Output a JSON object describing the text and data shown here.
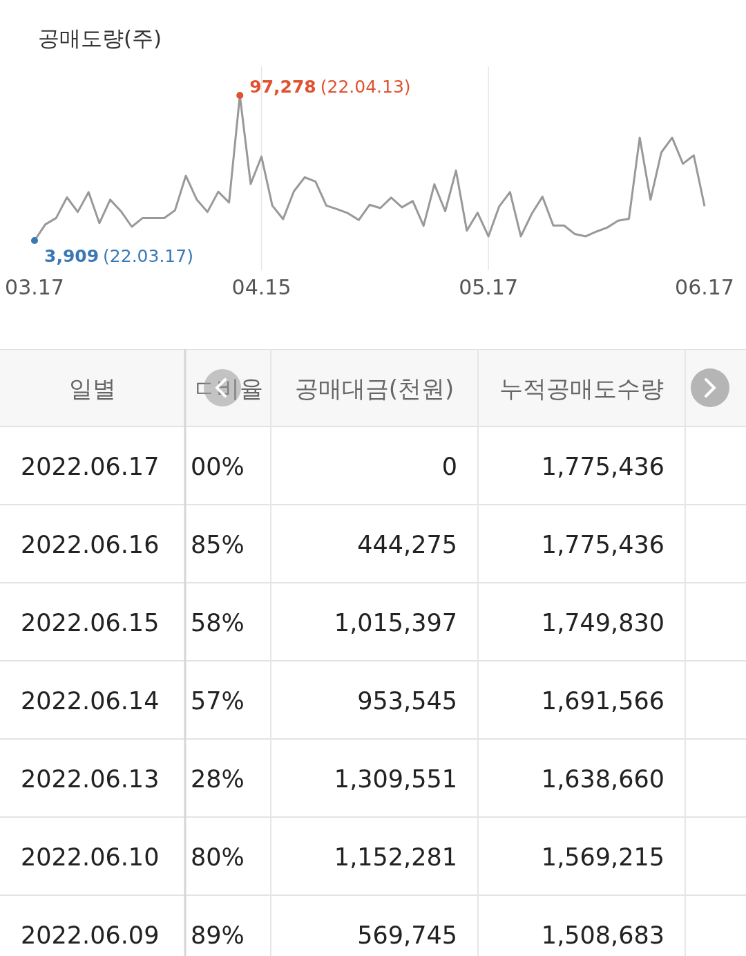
{
  "chart_data": [
    {
      "type": "line",
      "ylabel": "공매도량(주)",
      "categories": [
        "03.17",
        null,
        null,
        null,
        null,
        null,
        null,
        null,
        null,
        null,
        null,
        null,
        null,
        null,
        null,
        null,
        null,
        null,
        null,
        null,
        null,
        "04.15",
        null,
        null,
        null,
        null,
        null,
        null,
        null,
        null,
        null,
        null,
        null,
        null,
        null,
        null,
        null,
        null,
        null,
        null,
        null,
        null,
        "05.17",
        null,
        null,
        null,
        null,
        null,
        null,
        null,
        null,
        null,
        null,
        null,
        null,
        null,
        null,
        null,
        null,
        null,
        null,
        null,
        "06.17"
      ],
      "series": [
        {
          "color": "#999999",
          "marker": "none",
          "values": [
            3909,
            14300,
            18400,
            31700,
            22300,
            35000,
            15100,
            30200,
            22700,
            12800,
            18400,
            18400,
            18400,
            23400,
            45600,
            30400,
            22300,
            35300,
            28400,
            97278,
            40300,
            57900,
            26400,
            17700,
            35600,
            44600,
            41900,
            26400,
            24100,
            21500,
            17100,
            26900,
            24800,
            31500,
            25300,
            29300,
            13400,
            40100,
            22800,
            48900,
            10300,
            21800,
            6600,
            25900,
            35100,
            6600,
            21000,
            32100,
            13600,
            13600,
            8100,
            6600,
            9700,
            12300,
            16700,
            17900,
            70100,
            30200,
            60600,
            70100,
            53300,
            58700,
            26000
          ]
        },
        {
          "type": "scatter",
          "color": "#e0522f",
          "marker": "circle",
          "values": [
            null,
            null,
            null,
            null,
            null,
            null,
            null,
            null,
            null,
            null,
            null,
            null,
            null,
            null,
            null,
            null,
            null,
            null,
            null,
            97278,
            null,
            null,
            null,
            null,
            null,
            null,
            null,
            null,
            null,
            null,
            null,
            null,
            null,
            null,
            null,
            null,
            null,
            null,
            null,
            null,
            null,
            null,
            null,
            null,
            null,
            null,
            null,
            null,
            null,
            null,
            null,
            null,
            null,
            null,
            null,
            null,
            null,
            null,
            null,
            null,
            null,
            null,
            null
          ],
          "value_labels": [
            null,
            null,
            null,
            null,
            null,
            null,
            null,
            null,
            null,
            null,
            null,
            null,
            null,
            null,
            null,
            null,
            null,
            null,
            null,
            "97,278",
            null,
            null,
            null,
            null,
            null,
            null,
            null,
            null,
            null,
            null,
            null,
            null,
            null,
            null,
            null,
            null,
            null,
            null,
            null,
            null,
            null,
            null,
            null,
            null,
            null,
            null,
            null,
            null,
            null,
            null,
            null,
            null,
            null,
            null,
            null,
            null,
            null,
            null,
            null,
            null,
            null,
            null,
            null
          ]
        },
        {
          "type": "scatter",
          "color": "#3a78b5",
          "marker": "circle",
          "values": [
            3909,
            null,
            null,
            null,
            null,
            null,
            null,
            null,
            null,
            null,
            null,
            null,
            null,
            null,
            null,
            null,
            null,
            null,
            null,
            null,
            null,
            null,
            null,
            null,
            null,
            null,
            null,
            null,
            null,
            null,
            null,
            null,
            null,
            null,
            null,
            null,
            null,
            null,
            null,
            null,
            null,
            null,
            null,
            null,
            null,
            null,
            null,
            null,
            null,
            null,
            null,
            null,
            null,
            null,
            null,
            null,
            null,
            null,
            null,
            null,
            null,
            null,
            null
          ],
          "value_labels": [
            "3,909",
            null,
            null,
            null,
            null,
            null,
            null,
            null,
            null,
            null,
            null,
            null,
            null,
            null,
            null,
            null,
            null,
            null,
            null,
            null,
            null,
            null,
            null,
            null,
            null,
            null,
            null,
            null,
            null,
            null,
            null,
            null,
            null,
            null,
            null,
            null,
            null,
            null,
            null,
            null,
            null,
            null,
            null,
            null,
            null,
            null,
            null,
            null,
            null,
            null,
            null,
            null,
            null,
            null,
            null,
            null,
            null,
            null,
            null,
            null,
            null,
            null,
            null
          ]
        }
      ],
      "grid": "x",
      "annotations": [
        "(22.04.13)",
        "(22.03.17)"
      ]
    },
    {
      "type": "other",
      "categories": [
        "일별",
        "ㄷ비율",
        "공매대금(천원)",
        "누적공매도수량"
      ],
      "annotations": [
        "2022.06.17",
        "00%",
        "0",
        "1,775,436",
        "2022.06.16",
        "85%",
        "444,275",
        "1,775,436",
        "2022.06.15",
        "58%",
        "1,015,397",
        "1,749,830",
        "2022.06.14",
        "57%",
        "953,545",
        "1,691,566",
        "2022.06.13",
        "28%",
        "1,309,551",
        "1,638,660",
        "2022.06.10",
        "80%",
        "1,152,281",
        "1,569,215",
        "2022.06.09",
        "89%",
        "569,745",
        "1,508,683"
      ]
    }
  ]
}
